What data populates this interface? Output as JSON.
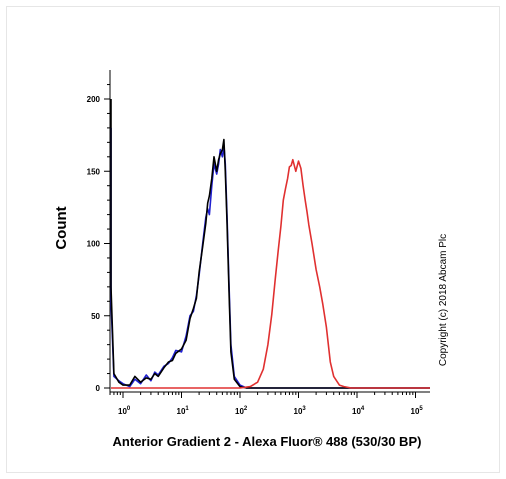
{
  "chart_data": {
    "type": "line",
    "title": "",
    "xlabel": "Anterior Gradient 2 - Alexa Fluor® 488 (530/30 BP)",
    "ylabel": "Count",
    "xscale": "log",
    "xlim": [
      0.5,
      300000
    ],
    "ylim": [
      0,
      220
    ],
    "y_ticks": [
      0,
      50,
      100,
      150,
      200
    ],
    "x_ticks": [
      {
        "base": "10",
        "exp": "0"
      },
      {
        "base": "10",
        "exp": "1"
      },
      {
        "base": "10",
        "exp": "2"
      },
      {
        "base": "10",
        "exp": "3"
      },
      {
        "base": "10",
        "exp": "4"
      },
      {
        "base": "10",
        "exp": "5"
      }
    ],
    "grid": false,
    "legend": "none",
    "annotation": "Copyright (c) 2018 Abcam Plc",
    "series": [
      {
        "color": "#2020d0",
        "x": [
          0.55,
          0.6,
          0.7,
          0.85,
          1.0,
          1.3,
          1.6,
          2.0,
          2.5,
          3.0,
          3.5,
          4.0,
          5.0,
          6.0,
          7.0,
          8.0,
          10,
          12,
          14,
          16,
          18,
          20,
          23,
          26,
          28,
          30,
          33,
          36,
          40,
          43,
          46,
          50,
          53,
          56,
          60,
          65,
          70,
          80,
          100,
          130,
          200,
          1000,
          10000,
          100000,
          300000
        ],
        "y": [
          180,
          60,
          8,
          5,
          3,
          1,
          6,
          3,
          9,
          5,
          11,
          9,
          15,
          17,
          21,
          26,
          25,
          36,
          50,
          53,
          64,
          78,
          100,
          118,
          124,
          120,
          140,
          155,
          148,
          155,
          165,
          160,
          168,
          155,
          120,
          70,
          30,
          8,
          2,
          0,
          0,
          0,
          0,
          0,
          0
        ]
      },
      {
        "color": "#000000",
        "x": [
          0.55,
          0.6,
          0.7,
          0.85,
          1.0,
          1.3,
          1.6,
          2.0,
          2.5,
          3.0,
          3.5,
          4.0,
          5.0,
          6.0,
          7.0,
          8.0,
          10,
          12,
          14,
          16,
          18,
          20,
          23,
          26,
          28,
          30,
          33,
          36,
          40,
          43,
          46,
          50,
          53,
          56,
          60,
          65,
          70,
          80,
          100,
          130,
          200,
          1000,
          10000,
          100000,
          300000
        ],
        "y": [
          200,
          70,
          10,
          4,
          2,
          2,
          8,
          4,
          7,
          6,
          10,
          8,
          14,
          18,
          19,
          24,
          27,
          33,
          48,
          55,
          62,
          80,
          98,
          114,
          128,
          133,
          145,
          160,
          150,
          158,
          162,
          165,
          172,
          150,
          115,
          65,
          25,
          6,
          1,
          0,
          0,
          0,
          0,
          0,
          0
        ]
      },
      {
        "color": "#e03030",
        "x": [
          0.5,
          100,
          150,
          200,
          250,
          300,
          350,
          400,
          450,
          500,
          550,
          600,
          650,
          700,
          750,
          800,
          900,
          1000,
          1100,
          1200,
          1300,
          1400,
          1500,
          1700,
          2000,
          2300,
          2600,
          3000,
          3500,
          4000,
          5000,
          6000,
          8000,
          10000,
          300000
        ],
        "y": [
          0,
          0,
          1,
          4,
          13,
          30,
          51,
          75,
          95,
          112,
          130,
          138,
          145,
          153,
          154,
          158,
          150,
          157,
          152,
          140,
          130,
          122,
          113,
          100,
          82,
          70,
          58,
          42,
          18,
          8,
          2,
          1,
          0,
          0,
          0
        ]
      }
    ]
  }
}
